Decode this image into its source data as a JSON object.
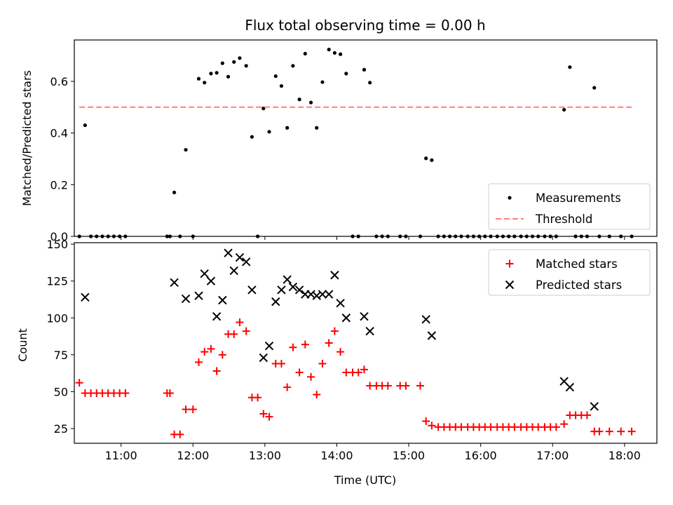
{
  "chart_data": [
    {
      "type": "scatter",
      "title": "Flux total observing time = 0.00 h",
      "ylabel": "Matched/Predicted stars",
      "xlabel": "",
      "xlim": [
        10.35,
        18.45
      ],
      "ylim": [
        0,
        0.76
      ],
      "yticks": [
        0.0,
        0.2,
        0.4,
        0.6
      ],
      "ytick_labels": [
        "0.0",
        "0.2",
        "0.4",
        "0.6"
      ],
      "legend_position": "lower-right",
      "series": [
        {
          "name": "Measurements",
          "kind": "point",
          "color": "#000000",
          "points": [
            [
              10.42,
              0.0
            ],
            [
              10.5,
              0.43
            ],
            [
              10.58,
              0.0
            ],
            [
              10.66,
              0.0
            ],
            [
              10.74,
              0.0
            ],
            [
              10.82,
              0.0
            ],
            [
              10.9,
              0.0
            ],
            [
              10.98,
              0.0
            ],
            [
              11.06,
              0.0
            ],
            [
              11.64,
              0.0
            ],
            [
              11.68,
              0.0
            ],
            [
              11.74,
              0.17
            ],
            [
              11.82,
              0.0
            ],
            [
              11.9,
              0.335
            ],
            [
              12.0,
              0.0
            ],
            [
              12.08,
              0.61
            ],
            [
              12.16,
              0.595
            ],
            [
              12.25,
              0.63
            ],
            [
              12.33,
              0.633
            ],
            [
              12.41,
              0.67
            ],
            [
              12.49,
              0.618
            ],
            [
              12.57,
              0.675
            ],
            [
              12.65,
              0.69
            ],
            [
              12.74,
              0.66
            ],
            [
              12.82,
              0.385
            ],
            [
              12.9,
              0.0
            ],
            [
              12.98,
              0.495
            ],
            [
              13.06,
              0.405
            ],
            [
              13.15,
              0.62
            ],
            [
              13.23,
              0.582
            ],
            [
              13.31,
              0.42
            ],
            [
              13.39,
              0.66
            ],
            [
              13.48,
              0.53
            ],
            [
              13.56,
              0.707
            ],
            [
              13.64,
              0.518
            ],
            [
              13.72,
              0.42
            ],
            [
              13.8,
              0.597
            ],
            [
              13.89,
              0.723
            ],
            [
              13.97,
              0.71
            ],
            [
              14.05,
              0.705
            ],
            [
              14.13,
              0.63
            ],
            [
              14.22,
              0.0
            ],
            [
              14.3,
              0.0
            ],
            [
              14.38,
              0.645
            ],
            [
              14.46,
              0.595
            ],
            [
              14.55,
              0.0
            ],
            [
              14.63,
              0.0
            ],
            [
              14.71,
              0.0
            ],
            [
              14.88,
              0.0
            ],
            [
              14.96,
              0.0
            ],
            [
              15.16,
              0.0
            ],
            [
              15.24,
              0.302
            ],
            [
              15.32,
              0.295
            ],
            [
              15.41,
              0.0
            ],
            [
              15.49,
              0.0
            ],
            [
              15.57,
              0.0
            ],
            [
              15.65,
              0.0
            ],
            [
              15.73,
              0.0
            ],
            [
              15.82,
              0.0
            ],
            [
              15.9,
              0.0
            ],
            [
              15.98,
              0.0
            ],
            [
              16.06,
              0.0
            ],
            [
              16.14,
              0.0
            ],
            [
              16.23,
              0.0
            ],
            [
              16.31,
              0.0
            ],
            [
              16.39,
              0.0
            ],
            [
              16.47,
              0.0
            ],
            [
              16.56,
              0.0
            ],
            [
              16.64,
              0.0
            ],
            [
              16.72,
              0.0
            ],
            [
              16.8,
              0.0
            ],
            [
              16.89,
              0.0
            ],
            [
              16.97,
              0.0
            ],
            [
              17.05,
              0.0
            ],
            [
              17.16,
              0.49
            ],
            [
              17.24,
              0.655
            ],
            [
              17.32,
              0.0
            ],
            [
              17.4,
              0.0
            ],
            [
              17.48,
              0.0
            ],
            [
              17.58,
              0.575
            ],
            [
              17.65,
              0.0
            ],
            [
              17.79,
              0.0
            ],
            [
              17.95,
              0.0
            ],
            [
              18.1,
              0.0
            ]
          ]
        },
        {
          "name": "Threshold",
          "kind": "dashed-line",
          "color": "#ff7f7f",
          "points": [
            [
              10.42,
              0.5
            ],
            [
              18.1,
              0.5
            ]
          ]
        }
      ]
    },
    {
      "type": "scatter",
      "title": "",
      "ylabel": "Count",
      "xlabel": "Time (UTC)",
      "xlim": [
        10.35,
        18.45
      ],
      "ylim": [
        15,
        151
      ],
      "yticks": [
        25,
        50,
        75,
        100,
        125,
        150
      ],
      "ytick_labels": [
        "25",
        "50",
        "75",
        "100",
        "125",
        "150"
      ],
      "xticks": [
        11,
        12,
        13,
        14,
        15,
        16,
        17,
        18
      ],
      "xtick_labels": [
        "11:00",
        "12:00",
        "13:00",
        "14:00",
        "15:00",
        "16:00",
        "17:00",
        "18:00"
      ],
      "legend_position": "upper-right",
      "series": [
        {
          "name": "Matched stars",
          "kind": "plus",
          "color": "#ff0000",
          "points": [
            [
              10.42,
              56
            ],
            [
              10.5,
              49
            ],
            [
              10.58,
              49
            ],
            [
              10.66,
              49
            ],
            [
              10.74,
              49
            ],
            [
              10.82,
              49
            ],
            [
              10.9,
              49
            ],
            [
              10.98,
              49
            ],
            [
              11.06,
              49
            ],
            [
              11.64,
              49
            ],
            [
              11.68,
              49
            ],
            [
              11.74,
              21
            ],
            [
              11.82,
              21
            ],
            [
              11.9,
              38
            ],
            [
              12.0,
              38
            ],
            [
              12.08,
              70
            ],
            [
              12.16,
              77
            ],
            [
              12.25,
              79
            ],
            [
              12.33,
              64
            ],
            [
              12.41,
              75
            ],
            [
              12.49,
              89
            ],
            [
              12.57,
              89
            ],
            [
              12.65,
              97
            ],
            [
              12.74,
              91
            ],
            [
              12.82,
              46
            ],
            [
              12.9,
              46
            ],
            [
              12.98,
              35
            ],
            [
              13.06,
              33
            ],
            [
              13.15,
              69
            ],
            [
              13.23,
              69
            ],
            [
              13.31,
              53
            ],
            [
              13.39,
              80
            ],
            [
              13.48,
              63
            ],
            [
              13.56,
              82
            ],
            [
              13.64,
              60
            ],
            [
              13.72,
              48
            ],
            [
              13.8,
              69
            ],
            [
              13.89,
              83
            ],
            [
              13.97,
              91
            ],
            [
              14.05,
              77
            ],
            [
              14.13,
              63
            ],
            [
              14.22,
              63
            ],
            [
              14.3,
              63
            ],
            [
              14.38,
              65
            ],
            [
              14.46,
              54
            ],
            [
              14.55,
              54
            ],
            [
              14.63,
              54
            ],
            [
              14.71,
              54
            ],
            [
              14.88,
              54
            ],
            [
              14.96,
              54
            ],
            [
              15.16,
              54
            ],
            [
              15.24,
              30
            ],
            [
              15.32,
              27
            ],
            [
              15.41,
              26
            ],
            [
              15.49,
              26
            ],
            [
              15.57,
              26
            ],
            [
              15.65,
              26
            ],
            [
              15.73,
              26
            ],
            [
              15.82,
              26
            ],
            [
              15.9,
              26
            ],
            [
              15.98,
              26
            ],
            [
              16.06,
              26
            ],
            [
              16.14,
              26
            ],
            [
              16.23,
              26
            ],
            [
              16.31,
              26
            ],
            [
              16.39,
              26
            ],
            [
              16.47,
              26
            ],
            [
              16.56,
              26
            ],
            [
              16.64,
              26
            ],
            [
              16.72,
              26
            ],
            [
              16.8,
              26
            ],
            [
              16.89,
              26
            ],
            [
              16.97,
              26
            ],
            [
              17.05,
              26
            ],
            [
              17.16,
              28
            ],
            [
              17.24,
              34
            ],
            [
              17.32,
              34
            ],
            [
              17.4,
              34
            ],
            [
              17.48,
              34
            ],
            [
              17.58,
              23
            ],
            [
              17.65,
              23
            ],
            [
              17.79,
              23
            ],
            [
              17.95,
              23
            ],
            [
              18.1,
              23
            ]
          ]
        },
        {
          "name": "Predicted stars",
          "kind": "cross",
          "color": "#000000",
          "points": [
            [
              10.5,
              114
            ],
            [
              11.74,
              124
            ],
            [
              11.9,
              113
            ],
            [
              12.08,
              115
            ],
            [
              12.16,
              130
            ],
            [
              12.25,
              125
            ],
            [
              12.33,
              101
            ],
            [
              12.41,
              112
            ],
            [
              12.49,
              144
            ],
            [
              12.57,
              132
            ],
            [
              12.65,
              141
            ],
            [
              12.74,
              138
            ],
            [
              12.82,
              119
            ],
            [
              12.98,
              73
            ],
            [
              13.06,
              81
            ],
            [
              13.15,
              111
            ],
            [
              13.23,
              119
            ],
            [
              13.31,
              126
            ],
            [
              13.39,
              121
            ],
            [
              13.48,
              119
            ],
            [
              13.56,
              116
            ],
            [
              13.64,
              116
            ],
            [
              13.72,
              115
            ],
            [
              13.8,
              116
            ],
            [
              13.89,
              116
            ],
            [
              13.97,
              129
            ],
            [
              14.05,
              110
            ],
            [
              14.13,
              100
            ],
            [
              14.38,
              101
            ],
            [
              14.46,
              91
            ],
            [
              15.24,
              99
            ],
            [
              15.32,
              88
            ],
            [
              17.16,
              57
            ],
            [
              17.24,
              53
            ],
            [
              17.58,
              40
            ]
          ]
        }
      ]
    }
  ]
}
